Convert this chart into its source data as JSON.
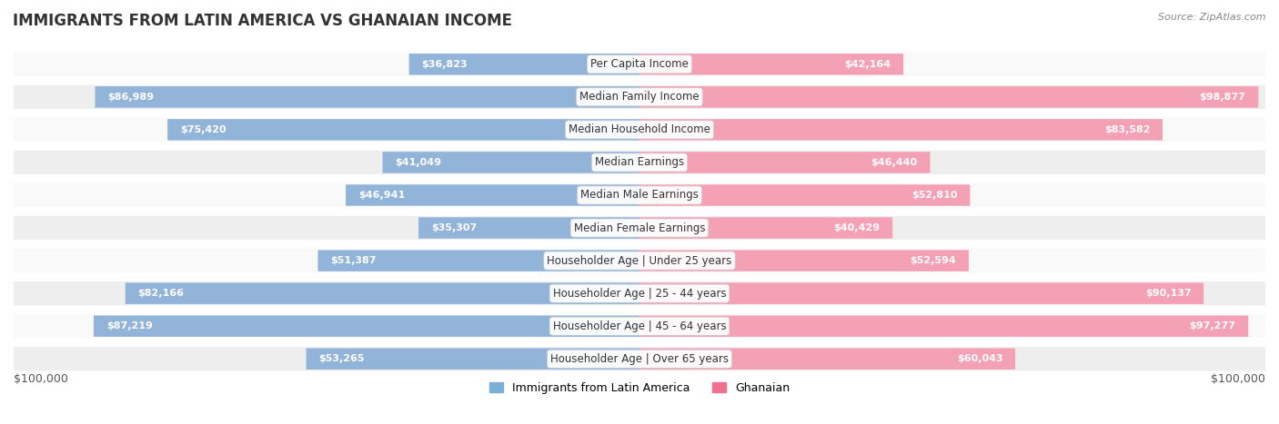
{
  "title": "IMMIGRANTS FROM LATIN AMERICA VS GHANAIAN INCOME",
  "source": "Source: ZipAtlas.com",
  "categories": [
    "Per Capita Income",
    "Median Family Income",
    "Median Household Income",
    "Median Earnings",
    "Median Male Earnings",
    "Median Female Earnings",
    "Householder Age | Under 25 years",
    "Householder Age | 25 - 44 years",
    "Householder Age | 45 - 64 years",
    "Householder Age | Over 65 years"
  ],
  "latin_america_values": [
    36823,
    86989,
    75420,
    41049,
    46941,
    35307,
    51387,
    82166,
    87219,
    53265
  ],
  "ghanaian_values": [
    42164,
    98877,
    83582,
    46440,
    52810,
    40429,
    52594,
    90137,
    97277,
    60043
  ],
  "max_value": 100000,
  "latin_america_color_bar": "#92b4d9",
  "latin_america_color_dark": "#6691c4",
  "ghanaian_color_bar": "#f4a0b5",
  "ghanaian_color_dark": "#e8608a",
  "label_color_light": "#555555",
  "label_color_dark": "#ffffff",
  "background_color": "#f5f5f5",
  "row_bg_light": "#f9f9f9",
  "row_bg_dark": "#eeeeee",
  "legend_latin_color": "#7bafd4",
  "legend_ghanaian_color": "#f07090",
  "xlim": 100000,
  "xlabel_left": "$100,000",
  "xlabel_right": "$100,000"
}
